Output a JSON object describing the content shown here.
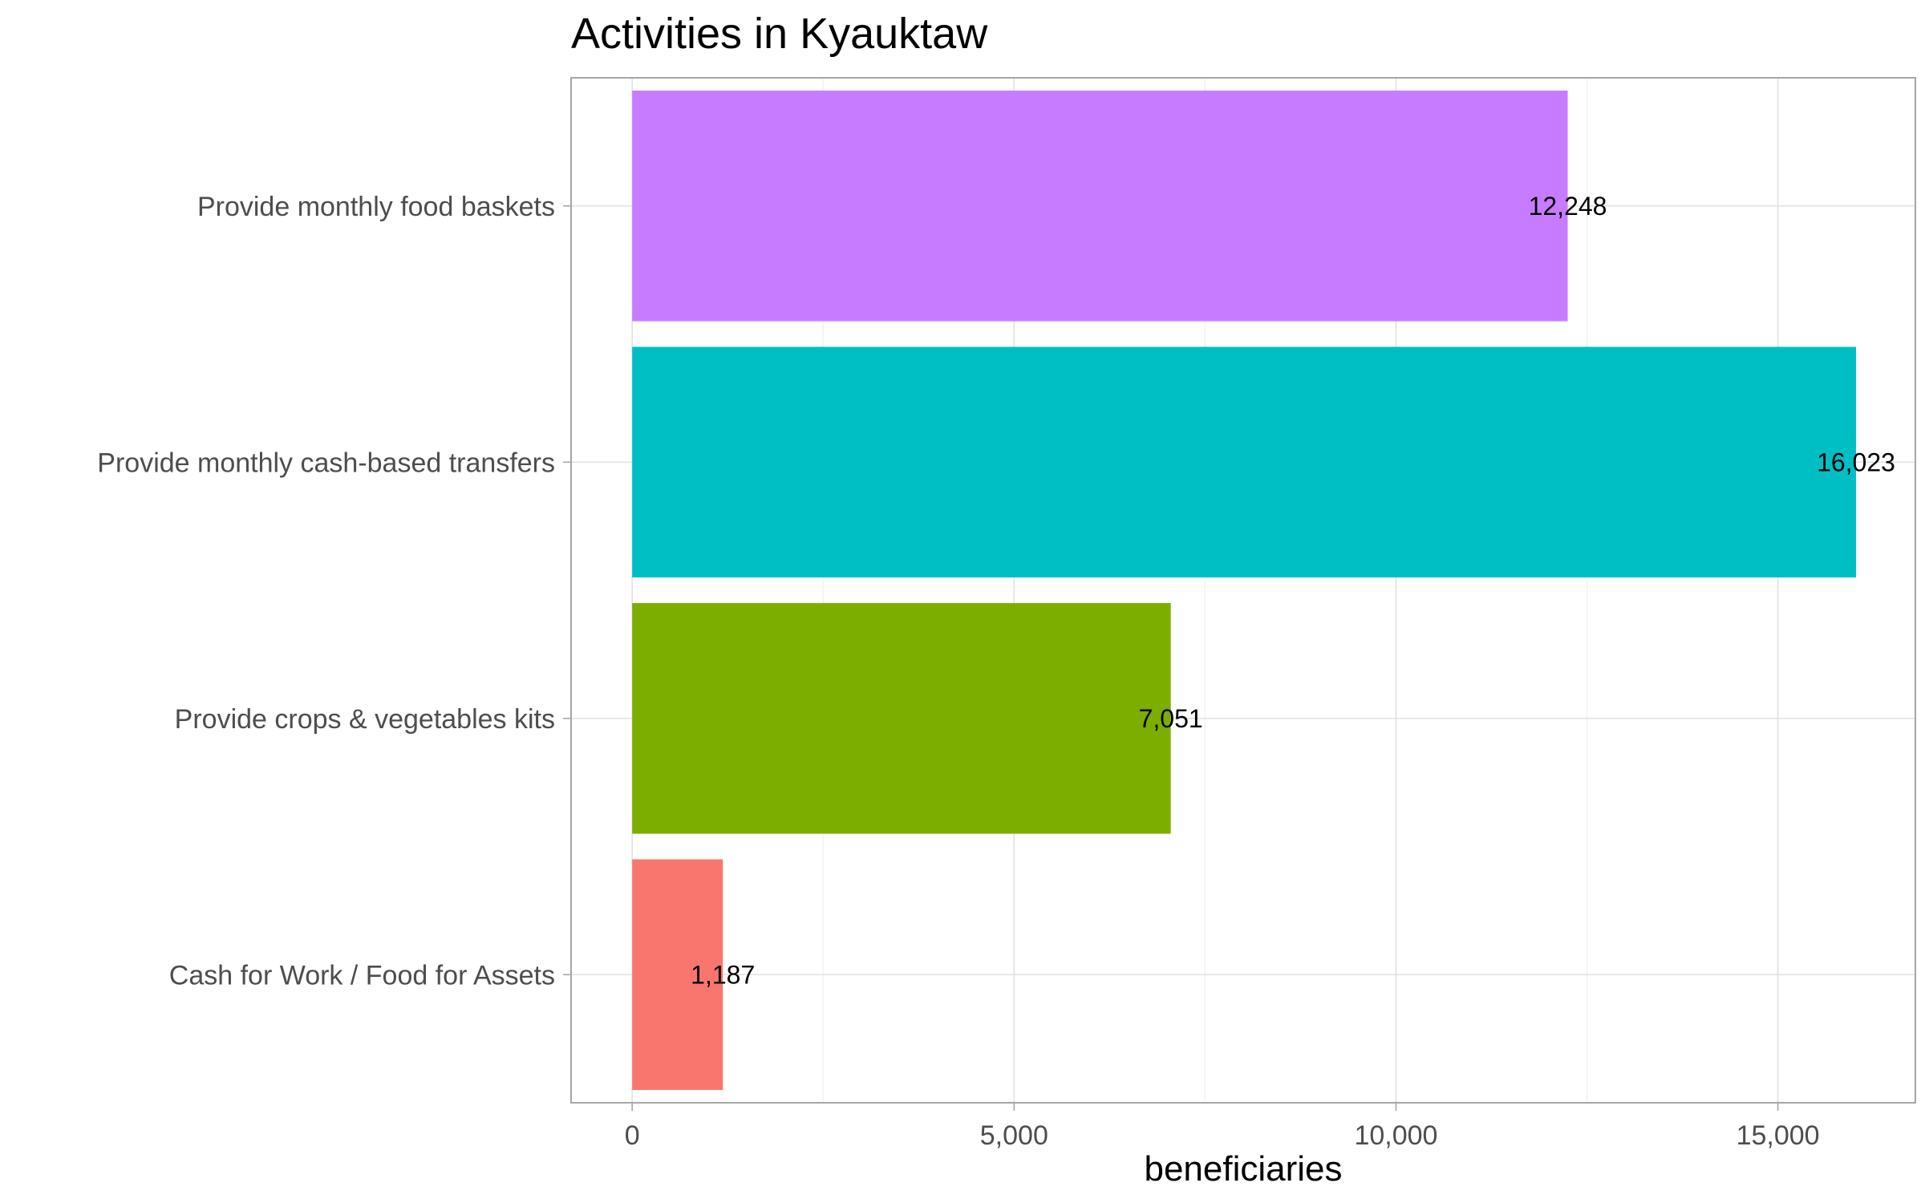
{
  "chart_data": {
    "type": "bar",
    "orientation": "horizontal",
    "title": "Activities in Kyauktaw",
    "xlabel": "beneficiaries",
    "ylabel": "",
    "xlim": [
      -800,
      16800
    ],
    "xticks": [
      0,
      5000,
      10000,
      15000
    ],
    "xtick_labels": [
      "0",
      "5,000",
      "10,000",
      "15,000"
    ],
    "grid": true,
    "legend": "none",
    "categories": [
      "Provide monthly food baskets",
      "Provide monthly cash-based transfers",
      "Provide crops & vegetables kits",
      "Cash for Work / Food for Assets"
    ],
    "values": [
      12248,
      16023,
      7051,
      1187
    ],
    "value_labels": [
      "12,248",
      "16,023",
      "7,051",
      "1,187"
    ],
    "colors": [
      "#C77CFF",
      "#00BFC4",
      "#7CAE00",
      "#F8766D"
    ]
  }
}
